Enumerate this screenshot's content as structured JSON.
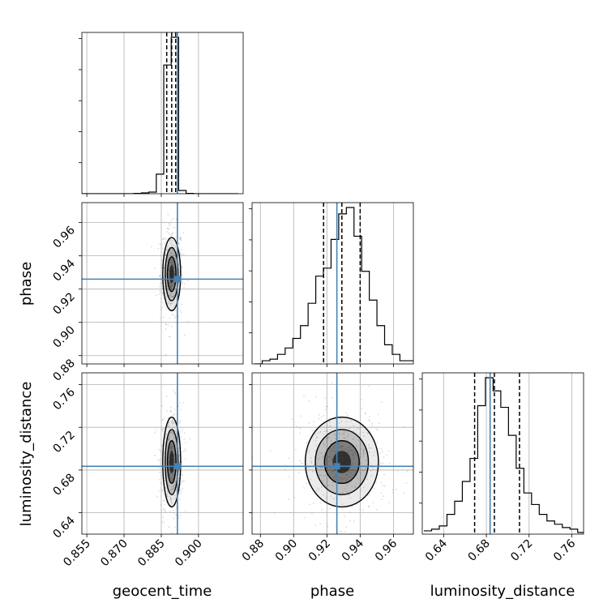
{
  "chart_data": {
    "type": "corner",
    "parameters": [
      "geocent_time",
      "phase",
      "luminosity_distance"
    ],
    "axis_labels": {
      "geocent_time": "geocent_time",
      "phase": "phase",
      "luminosity_distance": "luminosity_distance"
    },
    "ranges": {
      "geocent_time": [
        0.853,
        0.918
      ],
      "phase": [
        0.875,
        0.972
      ],
      "luminosity_distance": [
        0.62,
        0.771
      ]
    },
    "ticks": {
      "geocent_time": [
        "0.855",
        "0.870",
        "0.885",
        "0.900"
      ],
      "phase": [
        "0.88",
        "0.90",
        "0.92",
        "0.94",
        "0.96"
      ],
      "luminosity_distance": [
        "0.64",
        "0.68",
        "0.72",
        "0.76"
      ]
    },
    "truth": {
      "geocent_time": 0.8915,
      "phase": 0.926,
      "luminosity_distance": 0.6835
    },
    "quantiles": {
      "geocent_time": [
        0.8872,
        0.8892,
        0.8908
      ],
      "phase": [
        0.918,
        0.929,
        0.94
      ],
      "luminosity_distance": [
        0.669,
        0.6875,
        0.711
      ]
    },
    "histograms": {
      "geocent_time": {
        "bins": [
          0.853,
          0.856,
          0.859,
          0.862,
          0.865,
          0.868,
          0.871,
          0.874,
          0.877,
          0.88,
          0.883,
          0.886,
          0.889,
          0.892,
          0.895,
          0.898,
          0.901,
          0.904,
          0.907,
          0.91,
          0.913,
          0.916
        ],
        "counts": [
          0,
          0,
          0,
          0,
          0,
          0,
          0,
          0.002,
          0.005,
          0.01,
          0.12,
          0.79,
          0.96,
          0.02,
          0.002,
          0,
          0,
          0,
          0,
          0,
          0
        ]
      },
      "phase": {
        "bins": [
          0.8765,
          0.8811,
          0.8857,
          0.8903,
          0.8949,
          0.8995,
          0.9041,
          0.9087,
          0.9133,
          0.9179,
          0.9225,
          0.9271,
          0.9317,
          0.9363,
          0.9409,
          0.9455,
          0.9501,
          0.9547,
          0.9593,
          0.9639,
          0.9685,
          0.9731
        ],
        "counts": [
          0,
          0.02,
          0.03,
          0.06,
          0.1,
          0.16,
          0.24,
          0.38,
          0.55,
          0.6,
          0.78,
          0.94,
          0.98,
          0.8,
          0.58,
          0.4,
          0.24,
          0.12,
          0.06,
          0.02,
          0.02
        ]
      },
      "luminosity_distance": {
        "bins": [
          0.6215,
          0.6287,
          0.6359,
          0.6431,
          0.6503,
          0.6575,
          0.6647,
          0.6719,
          0.6791,
          0.6863,
          0.6935,
          0.7007,
          0.7079,
          0.7151,
          0.7223,
          0.7295,
          0.7367,
          0.7439,
          0.7511,
          0.7583,
          0.7655,
          0.7727
        ],
        "counts": [
          0.02,
          0.03,
          0.05,
          0.12,
          0.2,
          0.32,
          0.46,
          0.78,
          0.95,
          0.87,
          0.77,
          0.6,
          0.4,
          0.25,
          0.18,
          0.12,
          0.08,
          0.06,
          0.04,
          0.03,
          0.01
        ]
      }
    },
    "panels": [
      {
        "row": "geocent_time",
        "col": "geocent_time",
        "kind": "hist"
      },
      {
        "row": "phase",
        "col": "geocent_time",
        "kind": "2d"
      },
      {
        "row": "phase",
        "col": "phase",
        "kind": "hist"
      },
      {
        "row": "luminosity_distance",
        "col": "geocent_time",
        "kind": "2d"
      },
      {
        "row": "luminosity_distance",
        "col": "phase",
        "kind": "2d"
      },
      {
        "row": "luminosity_distance",
        "col": "luminosity_distance",
        "kind": "hist"
      }
    ],
    "grid": true,
    "colors": {
      "truth": "#4682b4",
      "hist": "#000000",
      "quantile": "#000000",
      "contour": "#000000",
      "samples": "#9a9a9a"
    }
  }
}
